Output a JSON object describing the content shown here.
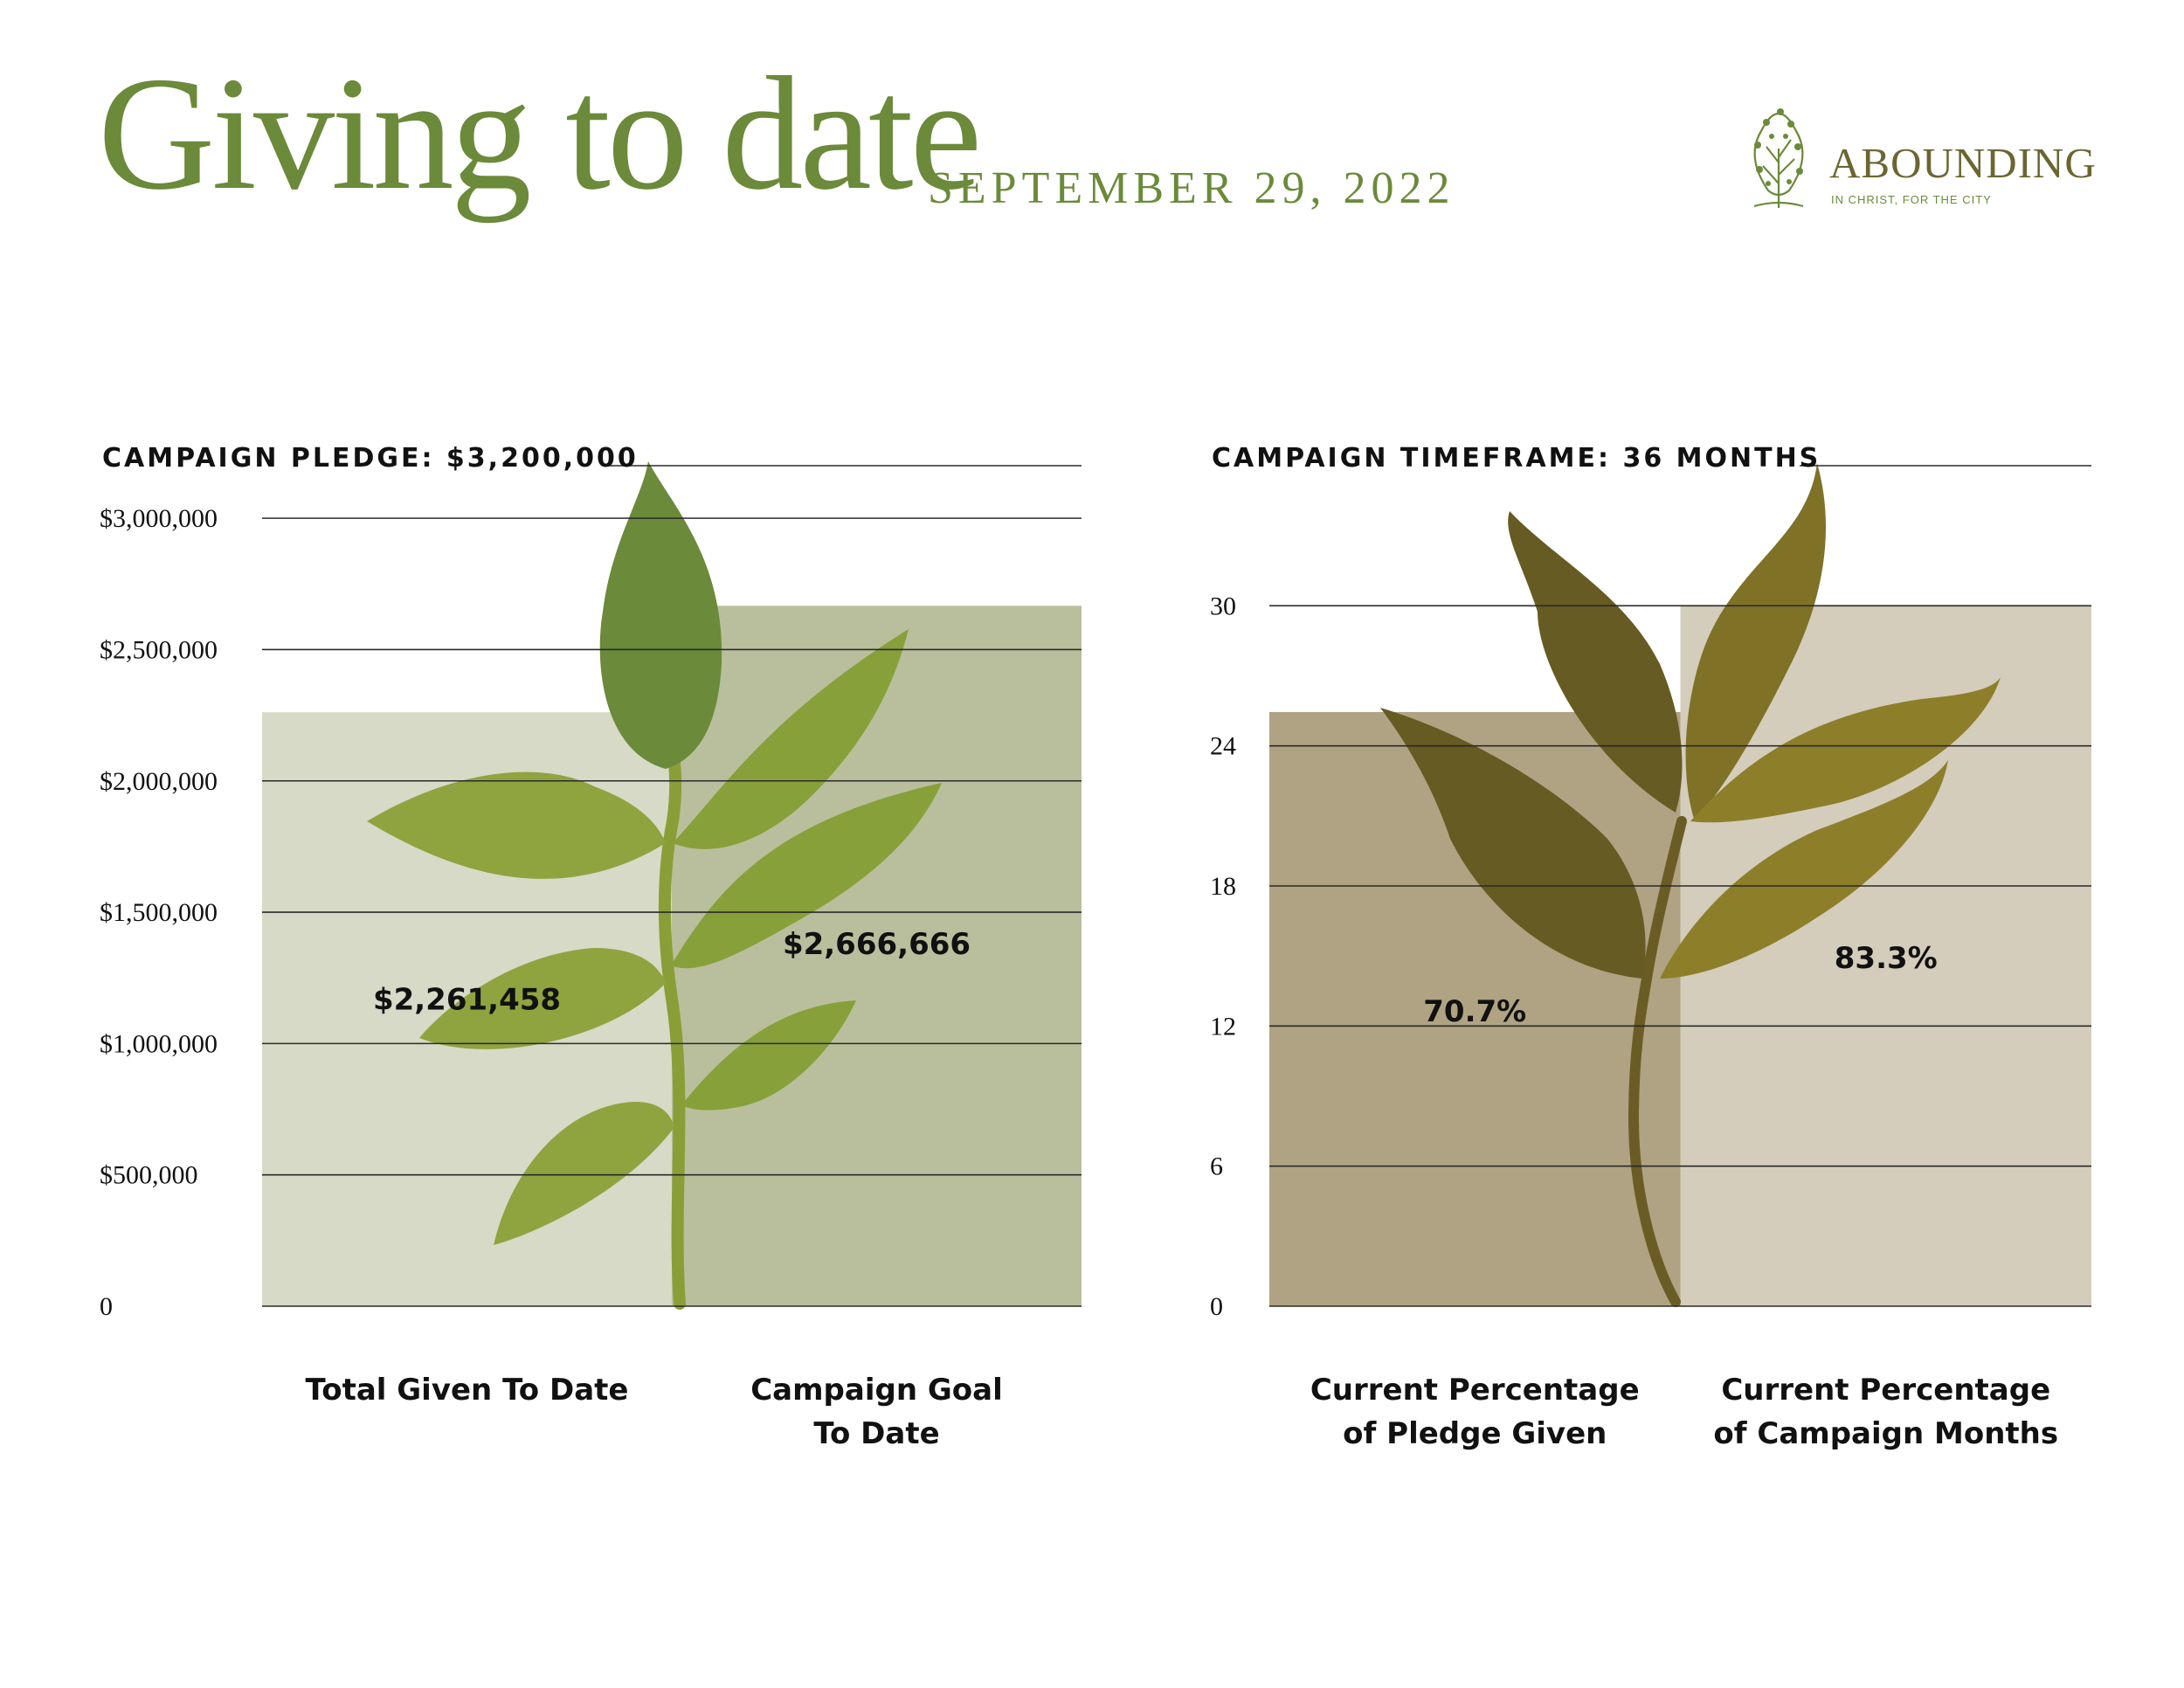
{
  "header": {
    "title": "Giving to date",
    "date": "SEPTEMBER 29, 2022",
    "logo": {
      "name": "ABOUNDING",
      "tagline": "IN CHRIST, FOR THE CITY"
    }
  },
  "colors": {
    "accent_green": "#6b8a3a",
    "logo_brown": "#6b6530",
    "bar_given": "#cfd3bc",
    "bar_goal": "#adb48b",
    "bar_pledge_pct": "#a1936d",
    "bar_months_pct": "#ccc4b0",
    "leaf_green": "#8a9e38",
    "leaf_olive": "#665b22"
  },
  "chart_data": [
    {
      "type": "bar",
      "title": "CAMPAIGN PLEDGE: $3,200,000",
      "categories": [
        "Total Given To Date",
        "Campaign Goal To Date"
      ],
      "category_lines": [
        [
          "Total Given To Date"
        ],
        [
          "Campaign Goal",
          "To Date"
        ]
      ],
      "values": [
        2261458,
        2666666
      ],
      "value_labels": [
        "$2,261,458",
        "$2,666,666"
      ],
      "ylim": [
        0,
        3200000
      ],
      "yticks": [
        0,
        500000,
        1000000,
        1500000,
        2000000,
        2500000,
        3000000
      ],
      "ytick_labels": [
        "0",
        "$500,000",
        "$1,000,000",
        "$1,500,000",
        "$2,000,000",
        "$2,500,000",
        "$3,000,000"
      ],
      "grid": true,
      "legend": "none"
    },
    {
      "type": "bar",
      "title": "CAMPAIGN TIMEFRAME: 36 MONTHS",
      "categories": [
        "Current Percentage of Pledge Given",
        "Current Percentage of Campaign Months"
      ],
      "category_lines": [
        [
          "Current Percentage",
          "of Pledge Given"
        ],
        [
          "Current Percentage",
          "of Campaign Months"
        ]
      ],
      "values": [
        25.45,
        30
      ],
      "value_labels": [
        "70.7%",
        "83.3%"
      ],
      "ylim": [
        0,
        36
      ],
      "yticks": [
        0,
        6,
        12,
        18,
        24,
        30
      ],
      "ytick_labels": [
        "0",
        "6",
        "12",
        "18",
        "24",
        "30"
      ],
      "grid": true,
      "legend": "none"
    }
  ]
}
